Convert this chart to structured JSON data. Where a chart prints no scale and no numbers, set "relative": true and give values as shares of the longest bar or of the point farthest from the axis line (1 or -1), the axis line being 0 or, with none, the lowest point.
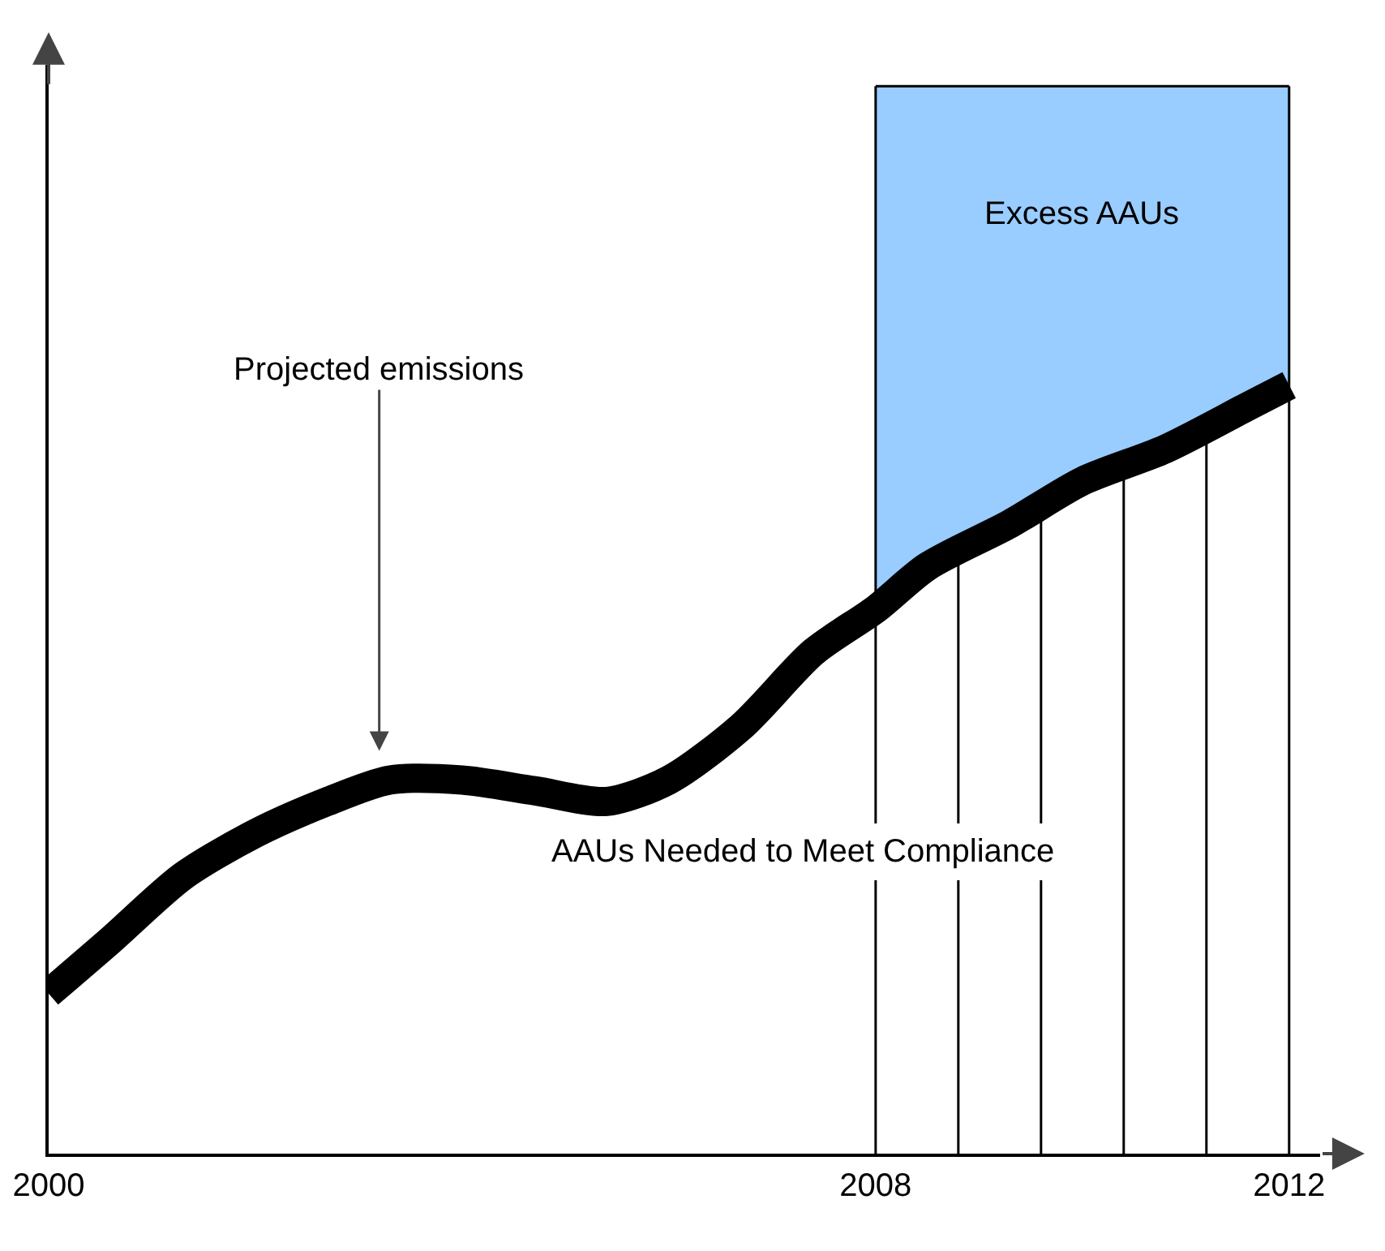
{
  "chart_data": {
    "type": "line",
    "relative": true,
    "xlim": [
      2000,
      2012.3
    ],
    "xticks": [
      2000,
      2008,
      2012
    ],
    "grid": false,
    "series": [
      {
        "color": "#000000",
        "x": [
          2000,
          2000.6,
          2001.3,
          2002,
          2002.7,
          2003.3,
          2004,
          2004.7,
          2005.4,
          2006,
          2006.7,
          2007.4,
          2008,
          2008.5,
          2009.3,
          2010,
          2010.8,
          2011.6,
          2012
        ],
        "values": [
          0.15,
          0.2,
          0.26,
          0.3,
          0.33,
          0.35,
          0.35,
          0.34,
          0.33,
          0.35,
          0.4,
          0.47,
          0.51,
          0.55,
          0.59,
          0.63,
          0.66,
          0.7,
          0.72
        ]
      },
      {
        "type": "area",
        "name": "Excess AAUs",
        "color": "#99ccff",
        "x": [
          2008,
          2008.5,
          2009.3,
          2010,
          2010.8,
          2011.6,
          2012
        ],
        "values": [
          1,
          1,
          1,
          1,
          1,
          1,
          1
        ]
      }
    ],
    "ref_lines": [
      {
        "axis": "x",
        "value": 2008,
        "color": "#000000"
      },
      {
        "axis": "x",
        "value": 2012,
        "color": "#000000"
      },
      {
        "axis": "x",
        "value": 2008.8,
        "color": "#000000"
      },
      {
        "axis": "x",
        "value": 2009.6,
        "color": "#000000"
      },
      {
        "axis": "x",
        "value": 2010.4,
        "color": "#000000"
      },
      {
        "axis": "x",
        "value": 2011.2,
        "color": "#000000"
      }
    ],
    "annotations": [
      "Projected emissions",
      "AAUs Needed to Meet Compliance"
    ]
  }
}
